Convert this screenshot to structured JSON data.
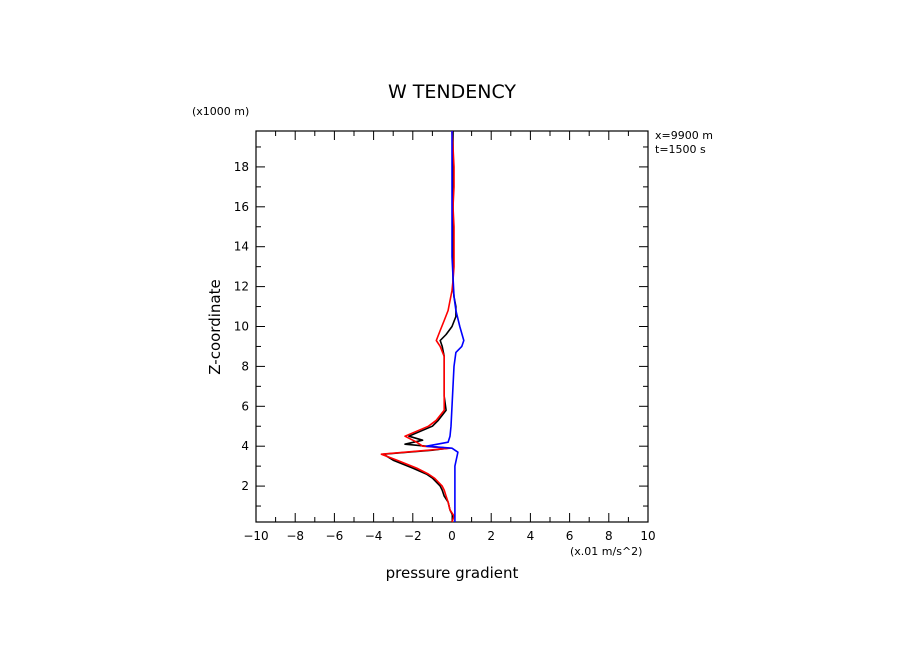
{
  "chart_data": {
    "type": "line",
    "title": "W TENDENCY",
    "xlabel": "pressure gradient",
    "ylabel": "Z-coordinate",
    "x_unit": "(x.01 m/s^2)",
    "y_unit": "(x1000 m)",
    "info": [
      "x=9900 m",
      "t=1500 s"
    ],
    "xlim": [
      -10,
      10
    ],
    "ylim": [
      0.2,
      19.8
    ],
    "xticks": [
      -10,
      -8,
      -6,
      -4,
      -2,
      0,
      2,
      4,
      6,
      8,
      10
    ],
    "yticks": [
      2,
      4,
      6,
      8,
      10,
      12,
      14,
      16,
      18
    ],
    "grid": false,
    "series": [
      {
        "color": "#000000",
        "points": [
          [
            0.0,
            0.2
          ],
          [
            0.05,
            0.5
          ],
          [
            -0.1,
            0.8
          ],
          [
            -0.2,
            1.2
          ],
          [
            -0.4,
            1.5
          ],
          [
            -0.5,
            1.8
          ],
          [
            -0.6,
            2.0
          ],
          [
            -1.0,
            2.4
          ],
          [
            -1.3,
            2.6
          ],
          [
            -2.0,
            2.9
          ],
          [
            -3.0,
            3.3
          ],
          [
            -3.5,
            3.6
          ],
          [
            -1.0,
            3.8
          ],
          [
            -0.2,
            3.9
          ],
          [
            -2.4,
            4.1
          ],
          [
            -1.5,
            4.3
          ],
          [
            -2.2,
            4.5
          ],
          [
            -1.0,
            5.0
          ],
          [
            -0.7,
            5.3
          ],
          [
            -0.3,
            5.8
          ],
          [
            -0.4,
            6.5
          ],
          [
            -0.4,
            7.5
          ],
          [
            -0.4,
            8.5
          ],
          [
            -0.5,
            9.0
          ],
          [
            -0.6,
            9.3
          ],
          [
            -0.3,
            9.6
          ],
          [
            0.0,
            10.0
          ],
          [
            0.2,
            10.5
          ],
          [
            0.2,
            11.0
          ],
          [
            0.1,
            11.5
          ],
          [
            0.05,
            12.0
          ],
          [
            0.05,
            13.0
          ],
          [
            0.05,
            14.0
          ],
          [
            0.05,
            15.0
          ],
          [
            0.05,
            16.0
          ],
          [
            0.05,
            17.0
          ],
          [
            0.05,
            18.0
          ],
          [
            0.05,
            19.0
          ],
          [
            0.05,
            19.8
          ]
        ]
      },
      {
        "color": "#ff0000",
        "points": [
          [
            0.0,
            0.2
          ],
          [
            0.1,
            0.5
          ],
          [
            -0.1,
            0.8
          ],
          [
            -0.2,
            1.2
          ],
          [
            -0.3,
            1.5
          ],
          [
            -0.4,
            1.8
          ],
          [
            -0.5,
            2.0
          ],
          [
            -0.9,
            2.4
          ],
          [
            -1.2,
            2.6
          ],
          [
            -1.8,
            2.9
          ],
          [
            -2.8,
            3.3
          ],
          [
            -3.6,
            3.6
          ],
          [
            -1.2,
            3.8
          ],
          [
            -0.1,
            3.9
          ],
          [
            -1.5,
            4.0
          ],
          [
            -1.8,
            4.2
          ],
          [
            -2.4,
            4.5
          ],
          [
            -1.2,
            5.0
          ],
          [
            -0.8,
            5.3
          ],
          [
            -0.4,
            5.8
          ],
          [
            -0.4,
            6.5
          ],
          [
            -0.4,
            7.5
          ],
          [
            -0.4,
            8.5
          ],
          [
            -0.6,
            9.0
          ],
          [
            -0.8,
            9.3
          ],
          [
            -0.6,
            9.8
          ],
          [
            -0.4,
            10.3
          ],
          [
            -0.2,
            10.8
          ],
          [
            -0.1,
            11.3
          ],
          [
            0.0,
            11.8
          ],
          [
            0.05,
            12.3
          ],
          [
            0.1,
            13.0
          ],
          [
            0.1,
            14.0
          ],
          [
            0.1,
            15.0
          ],
          [
            0.05,
            16.0
          ],
          [
            0.1,
            17.0
          ],
          [
            0.1,
            18.0
          ],
          [
            0.05,
            19.0
          ],
          [
            0.0,
            19.8
          ]
        ]
      },
      {
        "color": "#0000ff",
        "points": [
          [
            0.15,
            0.2
          ],
          [
            0.15,
            1.0
          ],
          [
            0.15,
            2.0
          ],
          [
            0.15,
            3.0
          ],
          [
            0.3,
            3.7
          ],
          [
            0.0,
            3.9
          ],
          [
            -1.3,
            4.0
          ],
          [
            -0.2,
            4.2
          ],
          [
            -0.1,
            4.5
          ],
          [
            -0.05,
            5.0
          ],
          [
            0.0,
            6.0
          ],
          [
            0.05,
            7.0
          ],
          [
            0.1,
            8.0
          ],
          [
            0.2,
            8.7
          ],
          [
            0.5,
            9.0
          ],
          [
            0.6,
            9.3
          ],
          [
            0.4,
            10.0
          ],
          [
            0.2,
            10.8
          ],
          [
            0.1,
            11.5
          ],
          [
            0.05,
            12.5
          ],
          [
            0.0,
            13.5
          ],
          [
            0.0,
            15.0
          ],
          [
            0.0,
            16.5
          ],
          [
            0.0,
            18.0
          ],
          [
            0.0,
            19.0
          ],
          [
            0.0,
            19.8
          ]
        ]
      }
    ]
  }
}
